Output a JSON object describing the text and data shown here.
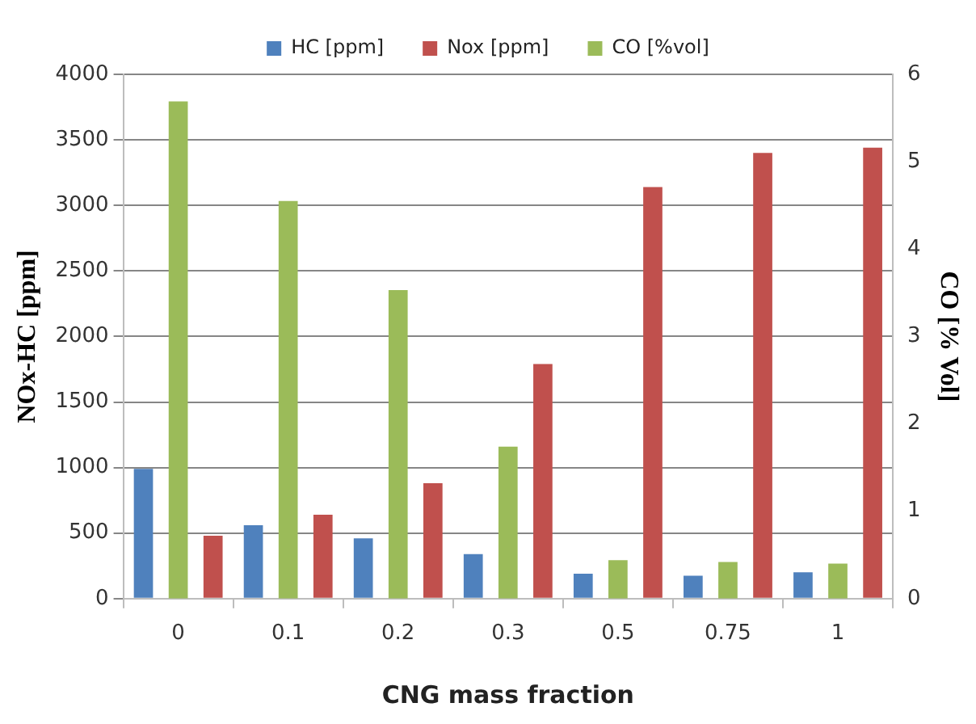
{
  "chart_data": {
    "type": "bar",
    "xlabel": "CNG mass fraction",
    "ylabel": "NOx-HC [ppm]",
    "y2label": "CO [% Vol]",
    "categories": [
      "0",
      "0.1",
      "0.2",
      "0.3",
      "0.5",
      "0.75",
      "1"
    ],
    "series": [
      {
        "name": "HC [ppm]",
        "color": "#4f81bd",
        "values": [
          990,
          560,
          460,
          340,
          190,
          175,
          200
        ]
      },
      {
        "name": "CO [%vol]",
        "color": "#9bbb59",
        "axis": "y2",
        "values": [
          5.69,
          4.55,
          3.53,
          1.74,
          0.44,
          0.42,
          0.4
        ]
      },
      {
        "name": "Nox [ppm]",
        "color": "#c0504d",
        "values": [
          480,
          640,
          880,
          1790,
          3140,
          3400,
          3440
        ]
      }
    ],
    "ylim": [
      0,
      4000
    ],
    "yticks": [
      0,
      500,
      1000,
      1500,
      2000,
      2500,
      3000,
      3500,
      4000
    ],
    "y2lim": [
      0,
      6
    ],
    "y2ticks": [
      0,
      1,
      2,
      3,
      4,
      5,
      6
    ],
    "grid": "y",
    "legend": "top"
  }
}
